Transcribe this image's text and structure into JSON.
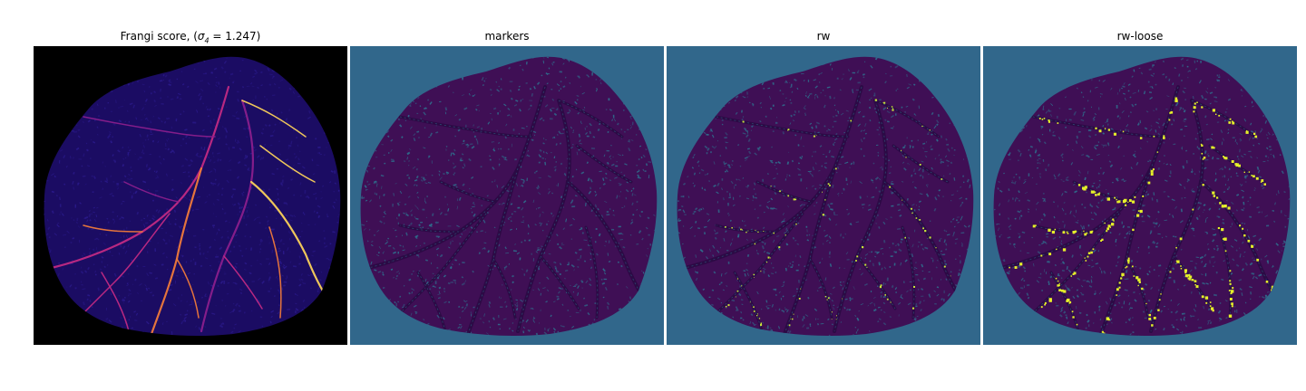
{
  "panels": [
    {
      "id": "frangi",
      "title_main": "Frangi score, (",
      "title_sigma": "σ",
      "title_sub": "4",
      "title_eq": " = 1.247)",
      "background": "#000000",
      "blob_fill": "#1b0c63",
      "texture_color": "#2a1a8a",
      "vessel_colors": [
        "#c12a83",
        "#f07a3a",
        "#8a1f8c",
        "#fbd15a"
      ]
    },
    {
      "id": "markers",
      "title": "markers",
      "background": "#31678b",
      "blob_fill": "#3f0f55",
      "texture_color": "#2f6d8c",
      "vessel_colors": [
        "#2a0a44"
      ]
    },
    {
      "id": "rw",
      "title": "rw",
      "background": "#31678b",
      "blob_fill": "#3f0f55",
      "texture_color": "#2f6d8c",
      "vessel_colors": [
        "#2a0a44"
      ],
      "accent_color": "#c9e43a"
    },
    {
      "id": "rw-loose",
      "title": "rw-loose",
      "background": "#31678b",
      "blob_fill": "#3f0f55",
      "texture_color": "#2f6d8c",
      "vessel_colors": [
        "#2a0a44"
      ],
      "accent_color": "#e6f02a"
    }
  ]
}
